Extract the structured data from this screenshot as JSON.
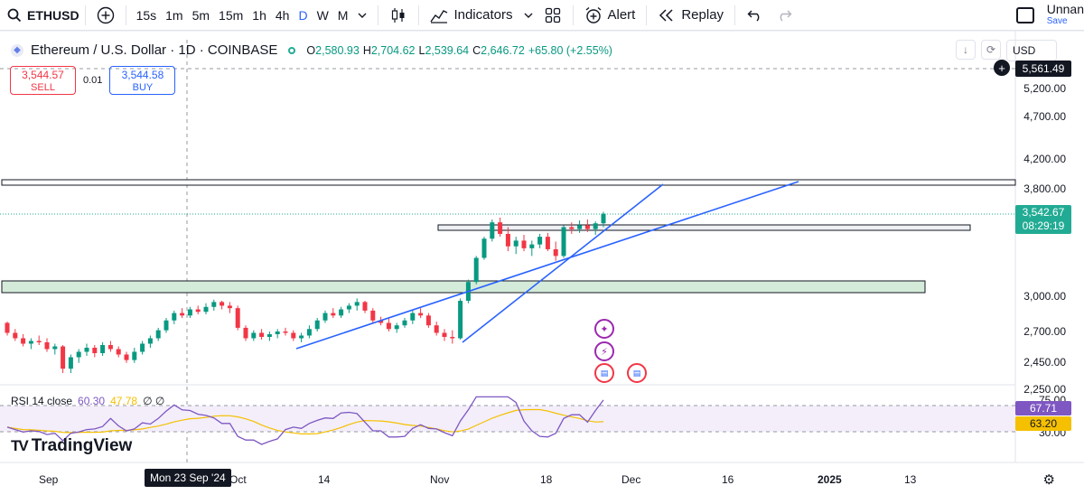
{
  "toolbar": {
    "symbol": "ETHUSD",
    "intervals": [
      "15s",
      "1m",
      "5m",
      "15m",
      "1h",
      "4h",
      "D",
      "W",
      "M"
    ],
    "active_interval": "D",
    "indicators_label": "Indicators",
    "alert_label": "Alert",
    "replay_label": "Replay",
    "layout_title": "Unnan",
    "save_label": "Save"
  },
  "legend": {
    "title": "Ethereum / U.S. Dollar · 1D · COINBASE",
    "o_label": "O",
    "o_value": "2,580.93",
    "h_label": "H",
    "h_value": "2,704.62",
    "l_label": "L",
    "l_value": "2,539.64",
    "c_label": "C",
    "c_value": "2,646.72",
    "change": "+65.80 (+2.55%)"
  },
  "trade": {
    "sell_price": "3,544.57",
    "sell_label": "SELL",
    "spread": "0.01",
    "buy_price": "3,544.58",
    "buy_label": "BUY"
  },
  "currency": "USD",
  "price_axis": [
    "5,200.00",
    "4,700.00",
    "4,200.00",
    "3,800.00",
    "3,000.00",
    "2,700.00",
    "2,450.00",
    "2,250.00"
  ],
  "price_tags": {
    "crosshair": "5,561.49",
    "last_price": "3,542.67",
    "countdown": "08:29:19"
  },
  "rsi": {
    "label": "RSI 14 close",
    "value": "60.30",
    "ma": "47.78",
    "extra": "∅ ∅",
    "axis_top": "75.00",
    "axis_bottom": "30.00",
    "tag_rsi": "67.71",
    "tag_ma": "63.20"
  },
  "time_axis": [
    "Sep",
    "Oct",
    "14",
    "Nov",
    "18",
    "Dec",
    "16",
    "2025",
    "13"
  ],
  "crosshair_time": "Mon 23 Sep '24",
  "brand": "TradingView",
  "colors": {
    "up": "#089981",
    "down": "#f23645",
    "trendline": "#2962ff",
    "zone_fill": "#d5ebd9",
    "rsi": "#7e57c2",
    "rsi_ma": "#f5c000"
  },
  "chart_data": {
    "type": "candlestick",
    "title": "Ethereum / U.S. Dollar · 1D · COINBASE",
    "ylim": [
      2050,
      5650
    ],
    "y_ticks": [
      2250,
      2450,
      2700,
      3000,
      3800,
      4200,
      4700,
      5200
    ],
    "x_ticks": [
      "Sep",
      "Oct",
      "14",
      "Nov",
      "18",
      "Dec",
      "16",
      "2025",
      "13"
    ],
    "last_price": 3542.67,
    "rsi": {
      "period": 14,
      "value": 60.3,
      "ma": 47.78,
      "levels": [
        30,
        70
      ]
    },
    "ohlc_daily_approx": [
      [
        2520,
        2530,
        2420,
        2440
      ],
      [
        2440,
        2470,
        2380,
        2400
      ],
      [
        2400,
        2430,
        2340,
        2360
      ],
      [
        2360,
        2400,
        2320,
        2380
      ],
      [
        2380,
        2420,
        2350,
        2370
      ],
      [
        2370,
        2400,
        2300,
        2320
      ],
      [
        2320,
        2360,
        2280,
        2340
      ],
      [
        2340,
        2350,
        2150,
        2180
      ],
      [
        2180,
        2280,
        2150,
        2260
      ],
      [
        2260,
        2320,
        2220,
        2300
      ],
      [
        2300,
        2360,
        2270,
        2330
      ],
      [
        2330,
        2350,
        2260,
        2290
      ],
      [
        2290,
        2370,
        2270,
        2350
      ],
      [
        2350,
        2380,
        2300,
        2320
      ],
      [
        2320,
        2340,
        2260,
        2280
      ],
      [
        2280,
        2300,
        2220,
        2240
      ],
      [
        2240,
        2330,
        2220,
        2300
      ],
      [
        2300,
        2380,
        2280,
        2360
      ],
      [
        2360,
        2420,
        2330,
        2400
      ],
      [
        2400,
        2480,
        2380,
        2460
      ],
      [
        2460,
        2560,
        2440,
        2540
      ],
      [
        2540,
        2620,
        2510,
        2600
      ],
      [
        2600,
        2640,
        2560,
        2580
      ],
      [
        2580,
        2650,
        2560,
        2630
      ],
      [
        2630,
        2660,
        2590,
        2610
      ],
      [
        2610,
        2680,
        2590,
        2650
      ],
      [
        2650,
        2710,
        2620,
        2690
      ],
      [
        2690,
        2700,
        2630,
        2660
      ],
      [
        2660,
        2690,
        2600,
        2640
      ],
      [
        2640,
        2660,
        2460,
        2480
      ],
      [
        2480,
        2500,
        2380,
        2400
      ],
      [
        2400,
        2460,
        2380,
        2440
      ],
      [
        2440,
        2470,
        2390,
        2410
      ],
      [
        2410,
        2450,
        2380,
        2430
      ],
      [
        2430,
        2470,
        2400,
        2450
      ],
      [
        2450,
        2480,
        2420,
        2440
      ],
      [
        2440,
        2460,
        2380,
        2400
      ],
      [
        2400,
        2440,
        2370,
        2420
      ],
      [
        2420,
        2500,
        2400,
        2470
      ],
      [
        2470,
        2560,
        2450,
        2540
      ],
      [
        2540,
        2620,
        2520,
        2600
      ],
      [
        2600,
        2640,
        2560,
        2580
      ],
      [
        2580,
        2650,
        2560,
        2630
      ],
      [
        2630,
        2680,
        2600,
        2660
      ],
      [
        2660,
        2720,
        2620,
        2690
      ],
      [
        2690,
        2700,
        2600,
        2620
      ],
      [
        2620,
        2640,
        2520,
        2540
      ],
      [
        2540,
        2570,
        2500,
        2520
      ],
      [
        2520,
        2560,
        2450,
        2470
      ],
      [
        2470,
        2520,
        2440,
        2500
      ],
      [
        2500,
        2560,
        2480,
        2540
      ],
      [
        2540,
        2620,
        2510,
        2600
      ],
      [
        2600,
        2640,
        2560,
        2580
      ],
      [
        2580,
        2600,
        2480,
        2500
      ],
      [
        2500,
        2530,
        2420,
        2440
      ],
      [
        2440,
        2470,
        2380,
        2410
      ],
      [
        2410,
        2460,
        2360,
        2400
      ],
      [
        2400,
        2720,
        2390,
        2700
      ],
      [
        2700,
        2880,
        2680,
        2860
      ],
      [
        2860,
        3100,
        2840,
        3080
      ],
      [
        3080,
        3300,
        3060,
        3280
      ],
      [
        3280,
        3480,
        3250,
        3450
      ],
      [
        3450,
        3500,
        3300,
        3330
      ],
      [
        3330,
        3400,
        3150,
        3200
      ],
      [
        3200,
        3300,
        3120,
        3260
      ],
      [
        3260,
        3320,
        3150,
        3180
      ],
      [
        3180,
        3260,
        3100,
        3220
      ],
      [
        3220,
        3330,
        3180,
        3300
      ],
      [
        3300,
        3340,
        3150,
        3170
      ],
      [
        3170,
        3250,
        3050,
        3100
      ],
      [
        3100,
        3420,
        3080,
        3400
      ],
      [
        3400,
        3450,
        3330,
        3380
      ],
      [
        3380,
        3470,
        3340,
        3420
      ],
      [
        3420,
        3480,
        3350,
        3380
      ],
      [
        3380,
        3460,
        3320,
        3440
      ],
      [
        3440,
        3560,
        3400,
        3540
      ]
    ]
  }
}
